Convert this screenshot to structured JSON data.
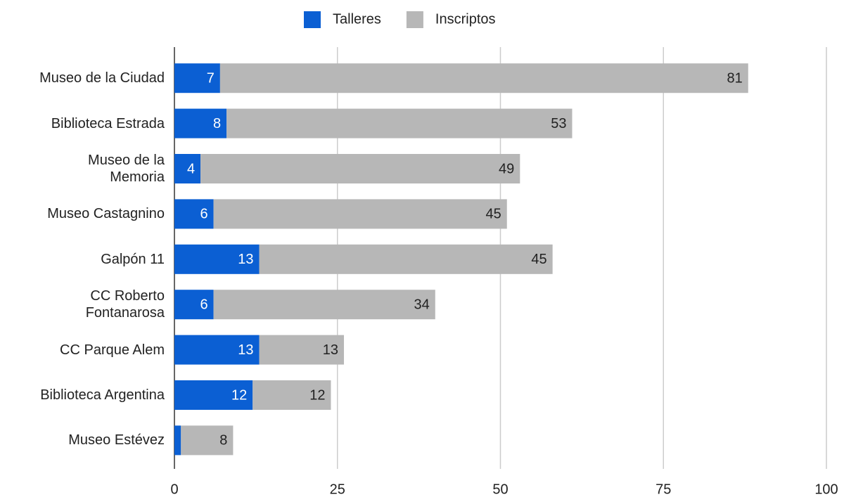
{
  "chart_data": {
    "type": "stacked-bar",
    "orientation": "horizontal",
    "categories": [
      "Museo de la Ciudad",
      "Biblioteca Estrada",
      "Museo de la\nMemoria",
      "Museo Castagnino",
      "Galpón 11",
      "CC Roberto\nFontanarosa",
      "CC Parque Alem",
      "Biblioteca Argentina",
      "Museo Estévez"
    ],
    "series": [
      {
        "name": "Talleres",
        "color": "#0b5fd3",
        "label_color": "#ffffff",
        "values": [
          7,
          8,
          4,
          6,
          13,
          6,
          13,
          12,
          1
        ]
      },
      {
        "name": "Inscriptos",
        "color": "#b7b7b7",
        "label_color": "#222222",
        "values": [
          81,
          53,
          49,
          45,
          45,
          34,
          13,
          12,
          8
        ]
      }
    ],
    "xlim": [
      0,
      100
    ],
    "xticks": [
      0,
      25,
      50,
      75,
      100
    ],
    "grid": true,
    "legend": "top"
  }
}
